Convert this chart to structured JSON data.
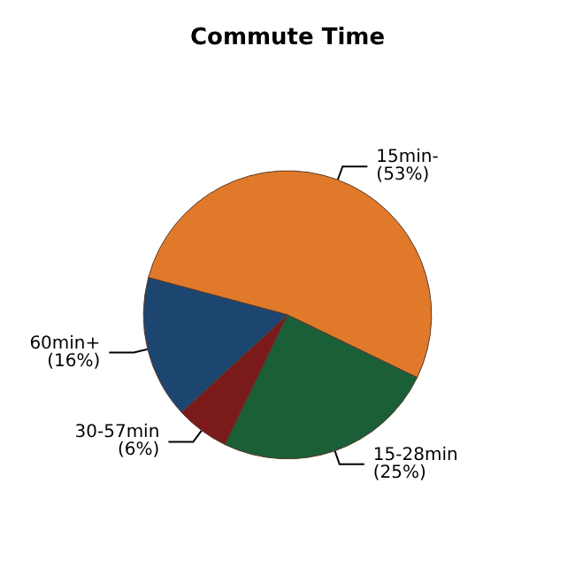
{
  "chart_data": {
    "type": "pie",
    "title": "Commute Time",
    "categories": [
      "15min-",
      "15-28min",
      "30-57min",
      "60min+"
    ],
    "values": [
      53,
      25,
      6,
      16
    ],
    "value_labels": [
      "(53%)",
      "(25%)",
      "(6%)",
      "(16%)"
    ],
    "colors": [
      "#e07a2a",
      "#1a5f38",
      "#7a1a1a",
      "#1c4670"
    ],
    "legend": false
  }
}
